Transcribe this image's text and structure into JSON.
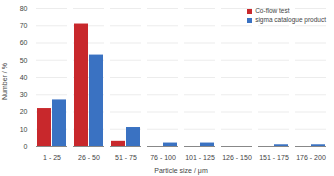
{
  "chart_data": {
    "type": "bar",
    "y_label": "Number / %",
    "x_label": "Particle size / μm",
    "categories": [
      "1 - 25",
      "26 - 50",
      "51 - 75",
      "76 - 100",
      "101 - 125",
      "126 - 150",
      "151 - 175",
      "176 - 200"
    ],
    "series": [
      {
        "name": "Co-flow test",
        "color": "#c8282c",
        "values": [
          22,
          71,
          3,
          0,
          0,
          0,
          0,
          0
        ]
      },
      {
        "name": "sigma catalogue product",
        "color": "#3a72c2",
        "values": [
          27,
          53,
          11,
          2,
          2,
          0,
          1,
          1
        ]
      }
    ],
    "ylim": [
      0,
      80
    ],
    "yticks": [
      0,
      10,
      20,
      30,
      40,
      50,
      60,
      70,
      80
    ],
    "grid": true,
    "legend": "top-right"
  }
}
